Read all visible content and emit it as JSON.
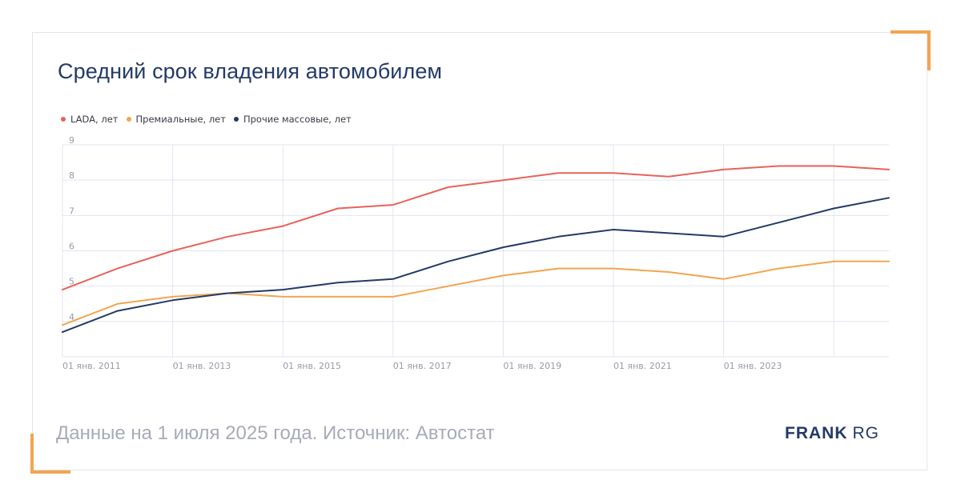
{
  "header": {
    "title": "Средний срок владения автомобилем"
  },
  "footer": {
    "note": "Данные на 1 июля 2025 года. Источник: Автостат",
    "brand_bold": "FRANK",
    "brand_regular": "RG"
  },
  "colors": {
    "accent": "#f2a550",
    "navy": "#233a66",
    "grid": "#e3e3f1",
    "tick_text": "#9a9aa8"
  },
  "chart_data": {
    "type": "line",
    "title": "Средний срок владения автомобилем",
    "xlabel": "",
    "ylabel": "",
    "x": [
      "2010-07",
      "2011-07",
      "2012-07",
      "2013-07",
      "2014-07",
      "2015-07",
      "2016-07",
      "2017-07",
      "2018-07",
      "2019-07",
      "2020-07",
      "2021-07",
      "2022-07",
      "2023-07",
      "2024-07",
      "2025-07"
    ],
    "x_ticks": [
      "01 янв. 2011",
      "01 янв. 2013",
      "01 янв. 2015",
      "01 янв. 2017",
      "01 янв. 2019",
      "01 янв. 2021",
      "01 янв. 2023"
    ],
    "y_ticks": [
      "4",
      "5",
      "6",
      "7",
      "8",
      "9"
    ],
    "ylim": [
      3,
      9
    ],
    "grid": true,
    "legend_position": "top-left",
    "series": [
      {
        "name": "LADA, лет",
        "color": "#e8625a",
        "values": [
          4.9,
          5.5,
          6.0,
          6.4,
          6.7,
          7.2,
          7.3,
          7.8,
          8.0,
          8.2,
          8.2,
          8.1,
          8.3,
          8.4,
          8.4,
          8.3
        ]
      },
      {
        "name": "Премиальные, лет",
        "color": "#f2a550",
        "values": [
          3.9,
          4.5,
          4.7,
          4.8,
          4.7,
          4.7,
          4.7,
          5.0,
          5.3,
          5.5,
          5.5,
          5.4,
          5.2,
          5.5,
          5.7,
          5.7
        ]
      },
      {
        "name": "Прочие массовые, лет",
        "color": "#233a66",
        "values": [
          3.7,
          4.3,
          4.6,
          4.8,
          4.9,
          5.1,
          5.2,
          5.7,
          6.1,
          6.4,
          6.6,
          6.5,
          6.4,
          6.8,
          7.2,
          7.5
        ]
      }
    ]
  }
}
